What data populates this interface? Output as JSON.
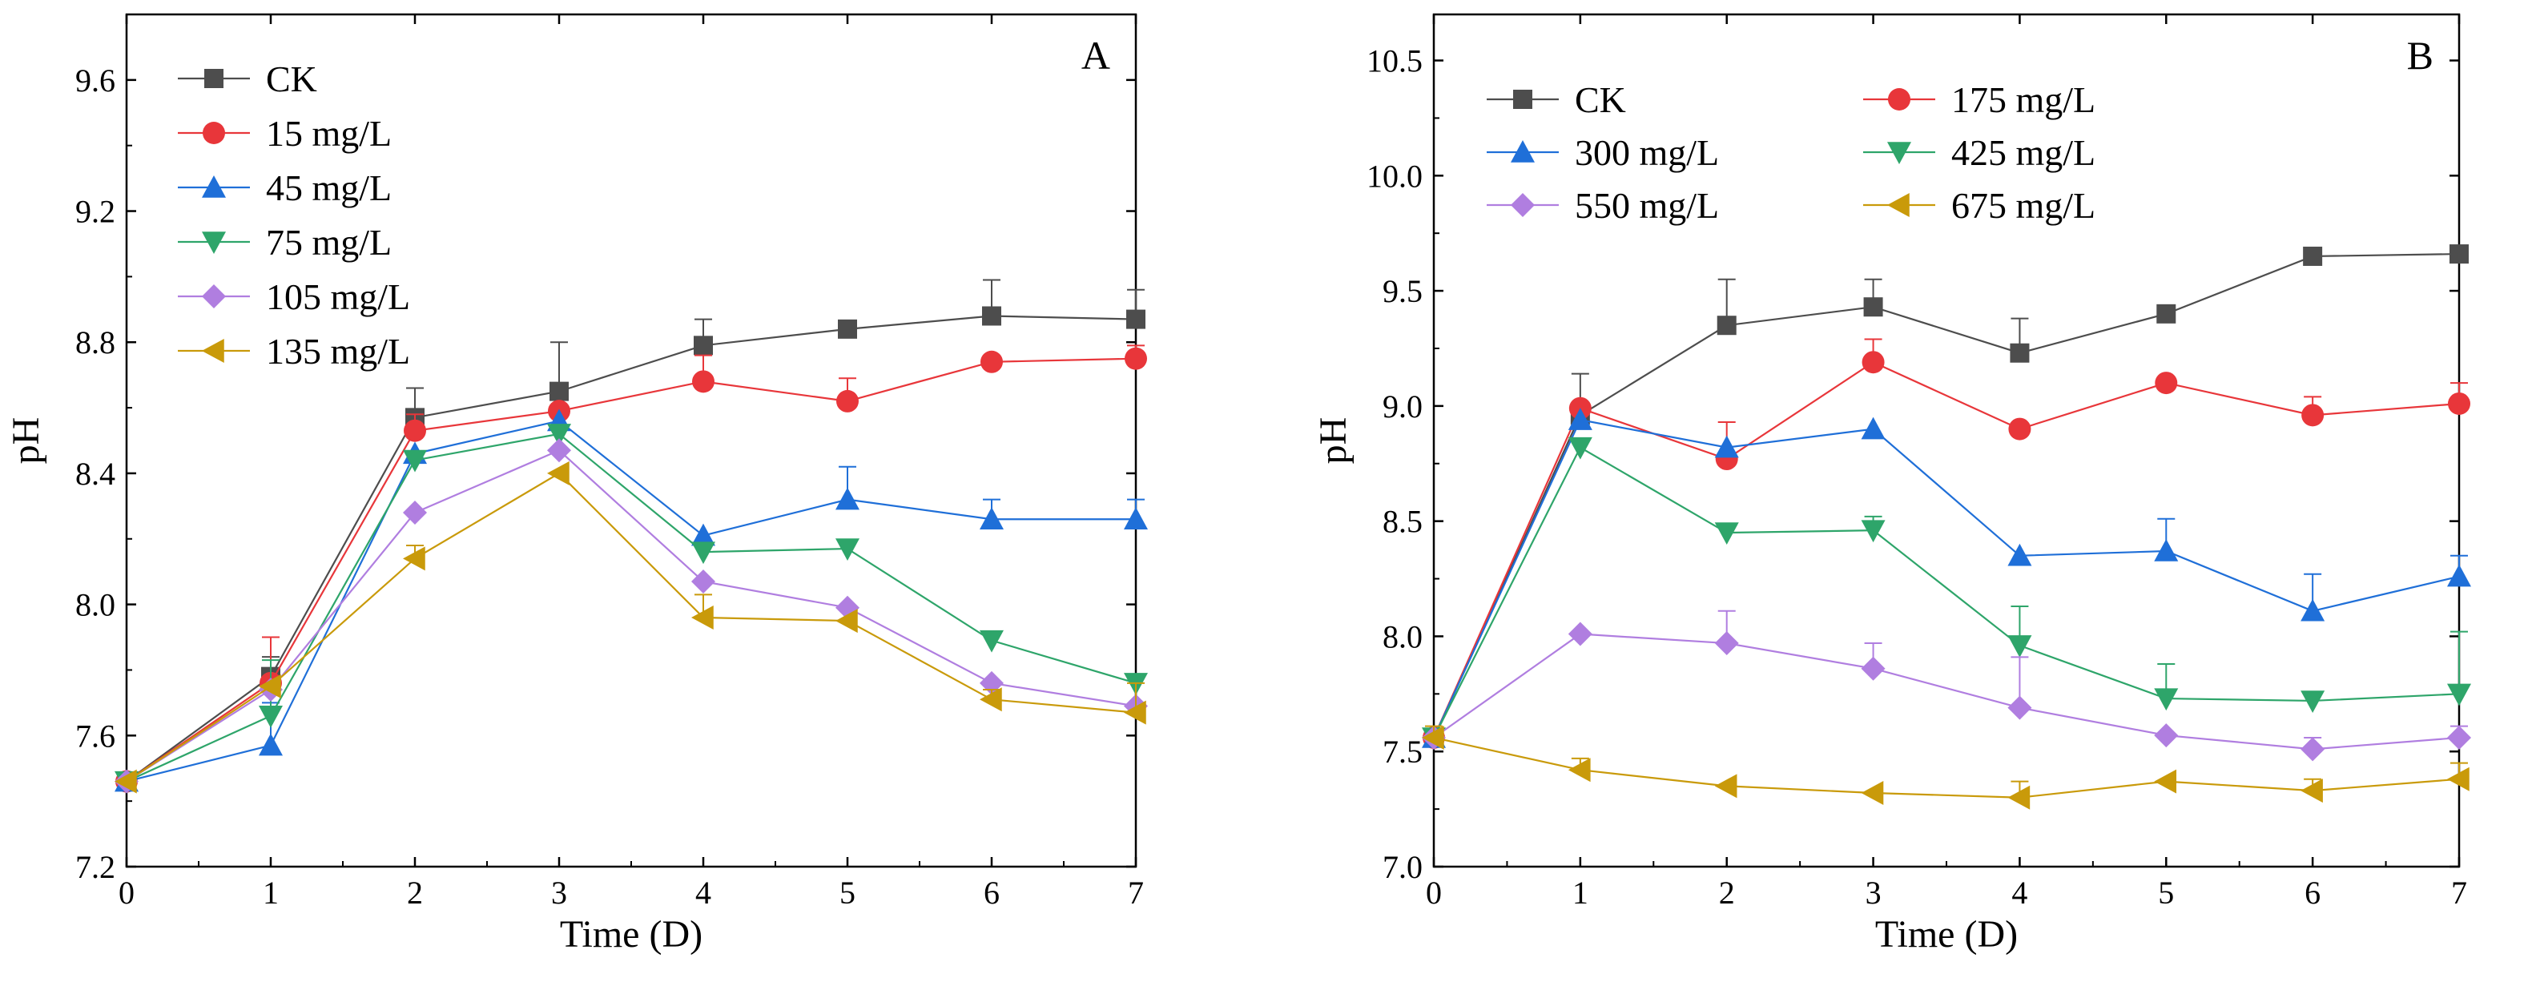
{
  "chart_data": [
    {
      "type": "line",
      "panel_label": "A",
      "xlabel": "Time (D)",
      "ylabel": "pH",
      "xlim": [
        0,
        7
      ],
      "ylim": [
        7.2,
        9.8
      ],
      "x_ticks": [
        0,
        1,
        2,
        3,
        4,
        5,
        6,
        7
      ],
      "y_ticks": [
        7.2,
        7.6,
        8.0,
        8.4,
        8.8,
        9.2,
        9.6
      ],
      "x": [
        0,
        1,
        2,
        3,
        4,
        5,
        6,
        7
      ],
      "legend_position": "top-left",
      "legend_columns": 1,
      "grid": false,
      "series": [
        {
          "name": "CK",
          "color": "#4d4d4d",
          "marker": "square",
          "values": [
            7.46,
            7.78,
            8.57,
            8.65,
            8.79,
            8.84,
            8.88,
            8.87
          ],
          "errors": [
            0,
            0.06,
            0.09,
            0.15,
            0.08,
            0,
            0.11,
            0.09
          ]
        },
        {
          "name": "15 mg/L",
          "color": "#e8363a",
          "marker": "circle",
          "values": [
            7.46,
            7.76,
            8.53,
            8.59,
            8.68,
            8.62,
            8.74,
            8.75
          ],
          "errors": [
            0,
            0.14,
            0.05,
            0,
            0.08,
            0.07,
            0,
            0.04
          ]
        },
        {
          "name": "45 mg/L",
          "color": "#1f6fd8",
          "marker": "triangle-up",
          "values": [
            7.46,
            7.57,
            8.46,
            8.56,
            8.21,
            8.32,
            8.26,
            8.26
          ],
          "errors": [
            0,
            0.13,
            0,
            0,
            0,
            0.1,
            0.06,
            0.06
          ]
        },
        {
          "name": "75 mg/L",
          "color": "#2ea56a",
          "marker": "triangle-down",
          "values": [
            7.46,
            7.66,
            8.44,
            8.52,
            8.16,
            8.17,
            7.89,
            7.76
          ],
          "errors": [
            0,
            0.17,
            0,
            0,
            0,
            0,
            0,
            0
          ]
        },
        {
          "name": "105 mg/L",
          "color": "#b07ee0",
          "marker": "diamond",
          "values": [
            7.46,
            7.74,
            8.28,
            8.47,
            8.07,
            7.99,
            7.76,
            7.69
          ],
          "errors": [
            0,
            0,
            0,
            0,
            0,
            0,
            0,
            0
          ]
        },
        {
          "name": "135 mg/L",
          "color": "#c99a0a",
          "marker": "triangle-left",
          "values": [
            7.46,
            7.75,
            8.14,
            8.4,
            7.96,
            7.95,
            7.71,
            7.67
          ],
          "errors": [
            0,
            0,
            0.04,
            0,
            0.07,
            0,
            0.03,
            0.09
          ]
        }
      ]
    },
    {
      "type": "line",
      "panel_label": "B",
      "xlabel": "Time (D)",
      "ylabel": "pH",
      "xlim": [
        0,
        7
      ],
      "ylim": [
        7.0,
        10.7
      ],
      "x_ticks": [
        0,
        1,
        2,
        3,
        4,
        5,
        6,
        7
      ],
      "y_ticks": [
        7.0,
        7.5,
        8.0,
        8.5,
        9.0,
        9.5,
        10.0,
        10.5
      ],
      "x": [
        0,
        1,
        2,
        3,
        4,
        5,
        6,
        7
      ],
      "legend_position": "top-left",
      "legend_columns": 2,
      "grid": false,
      "series": [
        {
          "name": "CK",
          "color": "#4d4d4d",
          "marker": "square",
          "values": [
            7.56,
            8.96,
            9.35,
            9.43,
            9.23,
            9.4,
            9.65,
            9.66
          ],
          "errors": [
            0,
            0.18,
            0.2,
            0.12,
            0.15,
            0.03,
            0.02,
            0.03
          ]
        },
        {
          "name": "175 mg/L",
          "color": "#e8363a",
          "marker": "circle",
          "values": [
            7.56,
            8.99,
            8.77,
            9.19,
            8.9,
            9.1,
            8.96,
            9.01
          ],
          "errors": [
            0,
            0,
            0.16,
            0.1,
            0,
            0,
            0.08,
            0.09
          ]
        },
        {
          "name": "300 mg/L",
          "color": "#1f6fd8",
          "marker": "triangle-up",
          "values": [
            7.56,
            8.94,
            8.82,
            8.9,
            8.35,
            8.37,
            8.11,
            8.26
          ],
          "errors": [
            0,
            0,
            0,
            0,
            0,
            0.14,
            0.16,
            0.09
          ]
        },
        {
          "name": "425 mg/L",
          "color": "#2ea56a",
          "marker": "triangle-down",
          "values": [
            7.56,
            8.82,
            8.45,
            8.46,
            7.96,
            7.73,
            7.72,
            7.75
          ],
          "errors": [
            0,
            0,
            0,
            0.06,
            0.17,
            0.15,
            0,
            0.27
          ]
        },
        {
          "name": "550 mg/L",
          "color": "#b07ee0",
          "marker": "diamond",
          "values": [
            7.56,
            8.01,
            7.97,
            7.86,
            7.69,
            7.57,
            7.51,
            7.56
          ],
          "errors": [
            0,
            0,
            0.14,
            0.11,
            0.22,
            0,
            0.05,
            0.05
          ]
        },
        {
          "name": "675 mg/L",
          "color": "#c99a0a",
          "marker": "triangle-left",
          "values": [
            7.56,
            7.42,
            7.35,
            7.32,
            7.3,
            7.37,
            7.33,
            7.38
          ],
          "errors": [
            0.05,
            0.05,
            0,
            0,
            0.07,
            0,
            0.05,
            0.07
          ]
        }
      ]
    }
  ]
}
